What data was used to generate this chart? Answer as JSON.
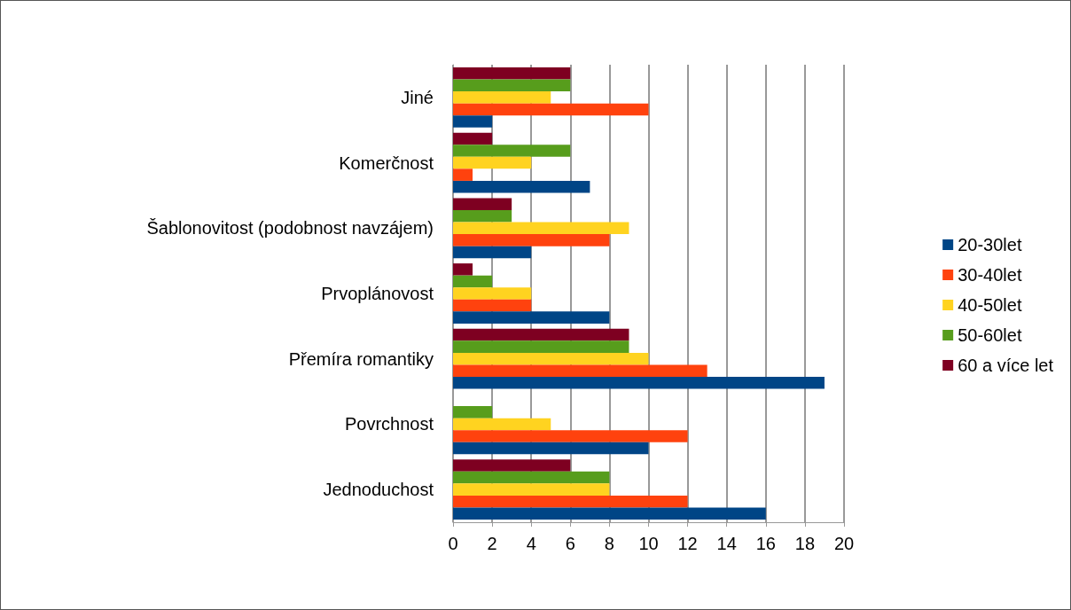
{
  "chart_data": {
    "type": "bar",
    "orientation": "horizontal",
    "categories": [
      "Jiné",
      "Komerčnost",
      "Šablonovitost (podobnost navzájem)",
      "Prvoplánovost",
      "Přemíra romantiky",
      "Povrchnost",
      "Jednoduchost"
    ],
    "series": [
      {
        "name": "20-30let",
        "color": "#004586",
        "values": [
          2,
          7,
          4,
          8,
          19,
          10,
          16
        ]
      },
      {
        "name": "30-40let",
        "color": "#ff420e",
        "values": [
          10,
          1,
          8,
          4,
          13,
          12,
          12
        ]
      },
      {
        "name": "40-50let",
        "color": "#ffd320",
        "values": [
          5,
          4,
          9,
          4,
          10,
          5,
          8
        ]
      },
      {
        "name": "50-60let",
        "color": "#579d1c",
        "values": [
          6,
          6,
          3,
          2,
          9,
          2,
          8
        ]
      },
      {
        "name": "60 a více let",
        "color": "#7e0021",
        "values": [
          6,
          2,
          3,
          1,
          9,
          0,
          6
        ]
      }
    ],
    "xlim": [
      0,
      20
    ],
    "xticks": [
      0,
      2,
      4,
      6,
      8,
      10,
      12,
      14,
      16,
      18,
      20
    ],
    "grid": "x",
    "legend": "right"
  }
}
